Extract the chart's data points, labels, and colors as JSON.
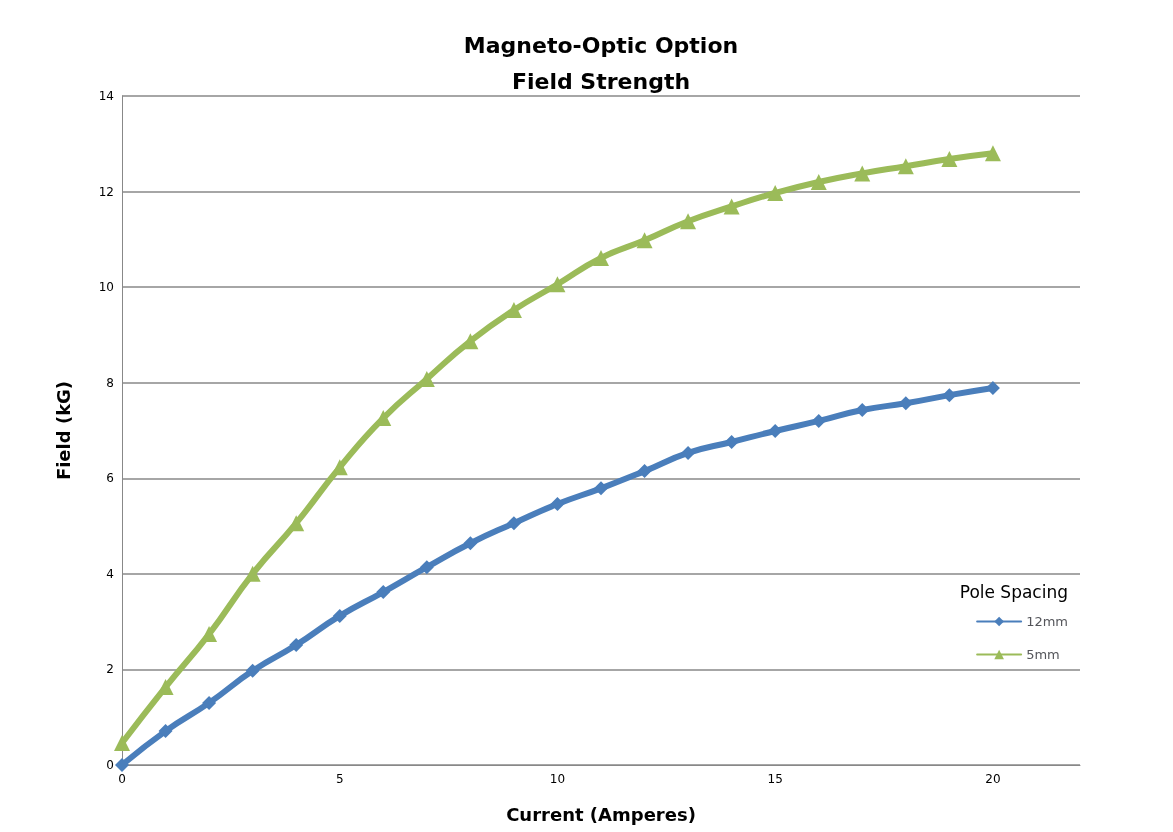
{
  "chart_data": {
    "type": "line",
    "title": "Magneto-Optic Option\nField Strength",
    "xlabel": "Current (Amperes)",
    "ylabel": "Field (kG)",
    "legend_title": "Pole Spacing",
    "legend": "right",
    "x": [
      0,
      1,
      2,
      3,
      4,
      5,
      6,
      7,
      8,
      9,
      10,
      11,
      12,
      13,
      14,
      15,
      16,
      17,
      18,
      19,
      20
    ],
    "series": [
      {
        "name": "12mm",
        "color": "#4a7ebb",
        "marker": "diamond",
        "values": [
          0,
          0.71,
          1.3,
          1.97,
          2.51,
          3.12,
          3.62,
          4.14,
          4.64,
          5.06,
          5.46,
          5.79,
          6.15,
          6.53,
          6.76,
          6.99,
          7.2,
          7.43,
          7.57,
          7.74,
          7.89
        ]
      },
      {
        "name": "5mm",
        "color": "#9bbb59",
        "marker": "triangle",
        "values": [
          0.46,
          1.63,
          2.74,
          4.0,
          5.06,
          6.23,
          7.26,
          8.08,
          8.87,
          9.52,
          10.06,
          10.61,
          10.98,
          11.38,
          11.69,
          11.97,
          12.2,
          12.38,
          12.53,
          12.68,
          12.8
        ]
      }
    ],
    "xlim": [
      0,
      22
    ],
    "xticks": [
      0,
      5,
      10,
      15,
      20
    ],
    "ylim": [
      0,
      14
    ],
    "yticks": [
      0,
      2,
      4,
      6,
      8,
      10,
      12,
      14
    ],
    "grid": "y",
    "line_style": "solid"
  }
}
